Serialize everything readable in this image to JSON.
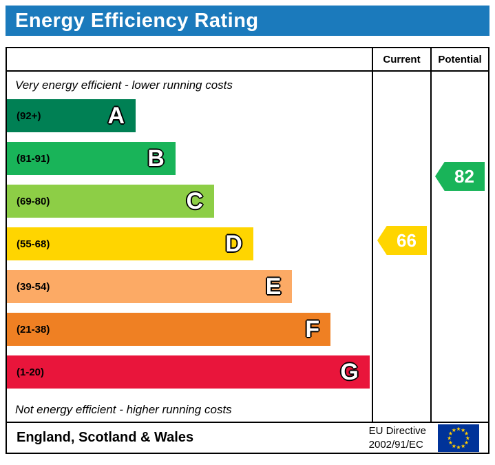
{
  "title": "Energy Efficiency Rating",
  "header": {
    "current_label": "Current",
    "potential_label": "Potential"
  },
  "notes": {
    "top": "Very energy efficient - lower running costs",
    "bottom": "Not energy efficient - higher running costs"
  },
  "chart_data": {
    "type": "bar",
    "title": "Energy Efficiency Rating",
    "bands": [
      {
        "letter": "A",
        "range": "(92+)",
        "min": 92,
        "max": 100,
        "color": "#008054",
        "width": "35.3%"
      },
      {
        "letter": "B",
        "range": "(81-91)",
        "min": 81,
        "max": 91,
        "color": "#19b459",
        "width": "46.2%"
      },
      {
        "letter": "C",
        "range": "(69-80)",
        "min": 69,
        "max": 80,
        "color": "#8dce46",
        "width": "56.8%"
      },
      {
        "letter": "D",
        "range": "(55-68)",
        "min": 55,
        "max": 68,
        "color": "#ffd500",
        "width": "67.5%"
      },
      {
        "letter": "E",
        "range": "(39-54)",
        "min": 39,
        "max": 54,
        "color": "#fcaa65",
        "width": "78.2%"
      },
      {
        "letter": "F",
        "range": "(21-38)",
        "min": 21,
        "max": 38,
        "color": "#ef8023",
        "width": "88.7%"
      },
      {
        "letter": "G",
        "range": "(1-20)",
        "min": 1,
        "max": 20,
        "color": "#e9153b",
        "width": "99.4%"
      }
    ],
    "current": {
      "value": 66,
      "band": "D",
      "color": "#ffd500"
    },
    "potential": {
      "value": 82,
      "band": "B",
      "color": "#19b459"
    }
  },
  "footer": {
    "region": "England, Scotland & Wales",
    "directive_line1": "EU Directive",
    "directive_line2": "2002/91/EC",
    "flag_bg": "#003399",
    "flag_star_color": "#ffcc00"
  },
  "colors": {
    "banner": "#1b7abc"
  }
}
